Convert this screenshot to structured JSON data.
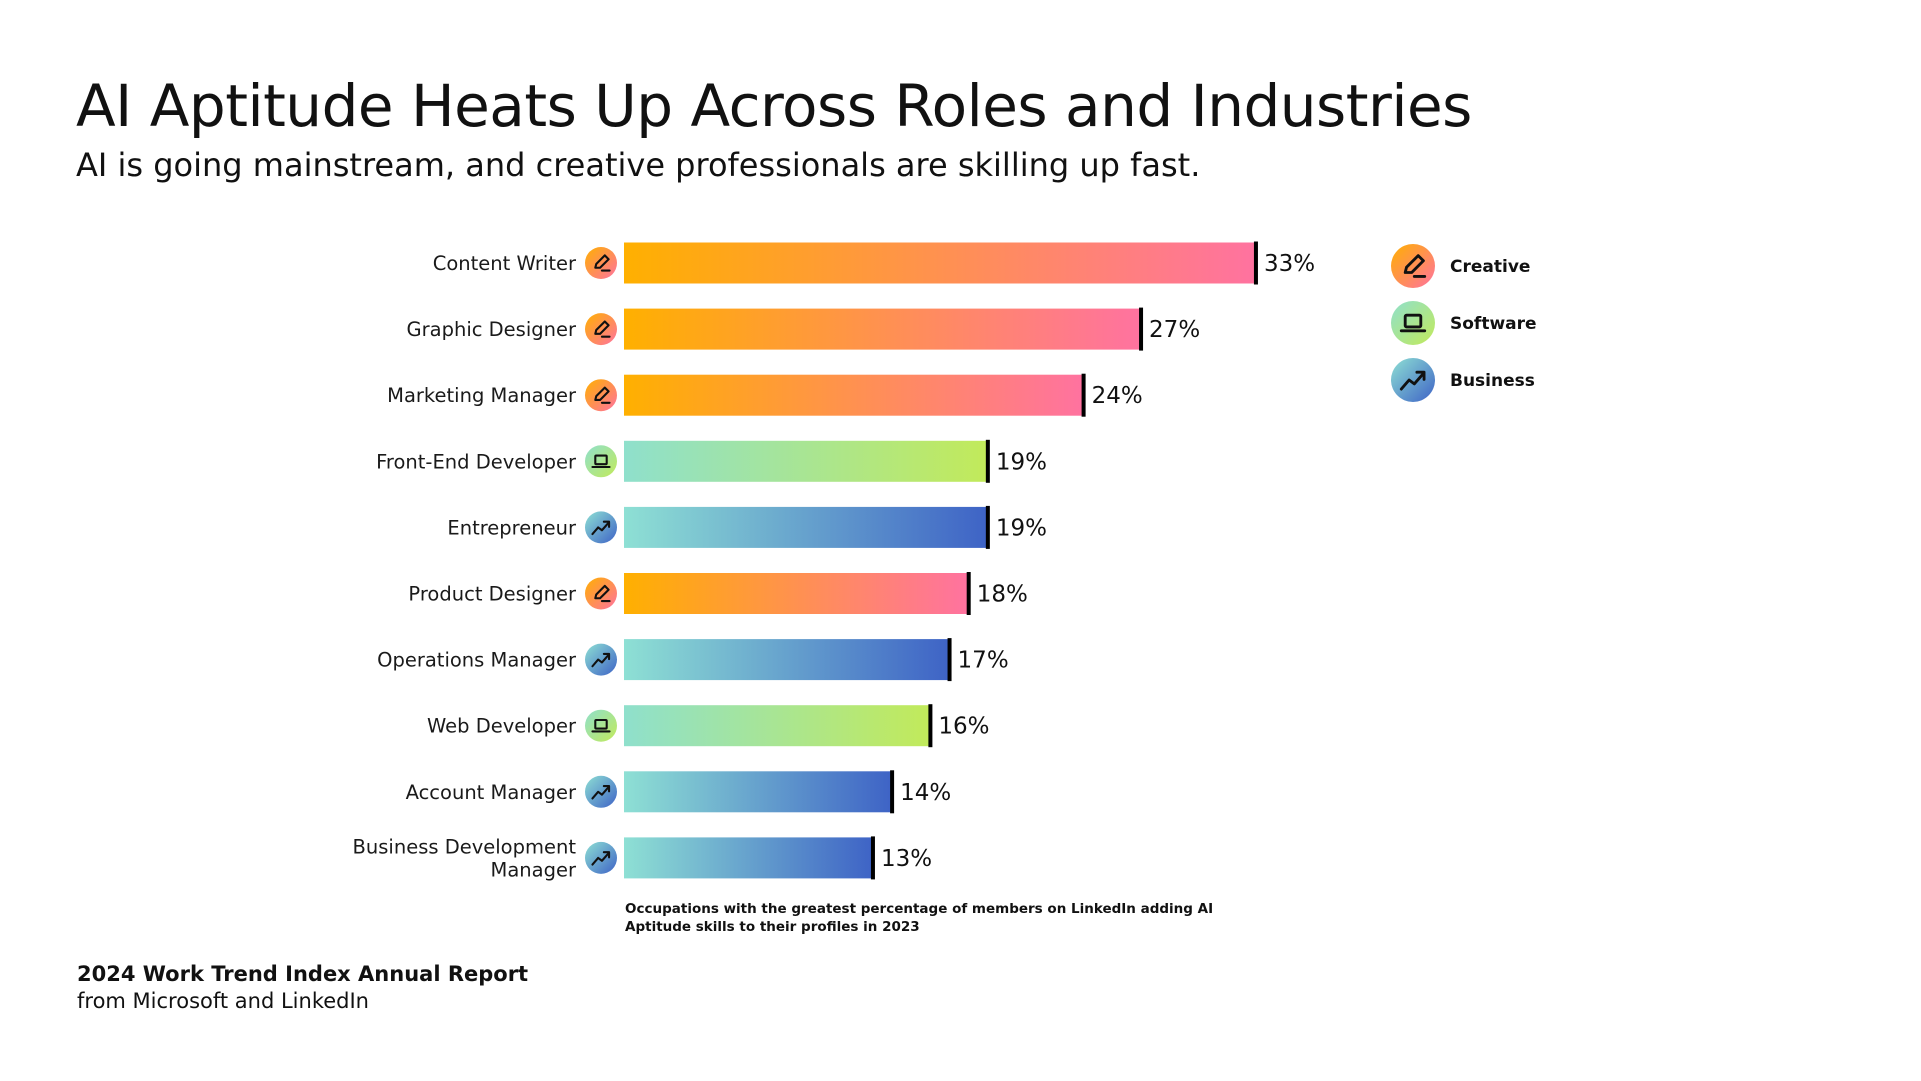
{
  "header": {
    "title": "AI Aptitude Heats Up Across Roles and Industries",
    "subtitle": "AI is going mainstream, and creative professionals are skilling up fast."
  },
  "chart_data": {
    "type": "bar",
    "orientation": "horizontal",
    "title": "AI Aptitude Heats Up Across Roles and Industries",
    "subtitle": "AI is going mainstream, and creative professionals are skilling up fast.",
    "xlabel": "",
    "ylabel": "",
    "xlim": [
      0,
      33
    ],
    "grid": false,
    "unit": "%",
    "legend_position": "top-right",
    "categories": [
      [
        "Content Writer"
      ],
      [
        "Graphic Designer"
      ],
      [
        "Marketing Manager"
      ],
      [
        "Front-End Developer"
      ],
      [
        "Entrepreneur"
      ],
      [
        "Product Designer"
      ],
      [
        "Operations Manager"
      ],
      [
        "Web Developer"
      ],
      [
        "Account Manager"
      ],
      [
        "Business Development",
        "Manager"
      ]
    ],
    "values": [
      33,
      27,
      24,
      19,
      19,
      18,
      17,
      16,
      14,
      13
    ],
    "value_labels": [
      "33%",
      "27%",
      "24%",
      "19%",
      "19%",
      "18%",
      "17%",
      "16%",
      "14%",
      "13%"
    ],
    "groups": [
      "creative",
      "creative",
      "creative",
      "software",
      "business",
      "creative",
      "business",
      "software",
      "business",
      "business"
    ],
    "legend": [
      {
        "key": "creative",
        "label": "Creative",
        "icon": "pencil-icon",
        "colors": [
          "#ffb000",
          "#ff72a0"
        ]
      },
      {
        "key": "software",
        "label": "Software",
        "icon": "laptop-icon",
        "colors": [
          "#8fe0cc",
          "#c2ea5a"
        ]
      },
      {
        "key": "business",
        "label": "Business",
        "icon": "trend-up-icon",
        "colors": [
          "#8ee0d4",
          "#3e63c6"
        ]
      }
    ],
    "footnote": "Occupations with the greatest percentage of members on LinkedIn adding AI Aptitude skills to their profiles in 2023"
  },
  "footer": {
    "title": "2024 Work Trend Index Annual Report",
    "subtitle": "from Microsoft and LinkedIn"
  }
}
